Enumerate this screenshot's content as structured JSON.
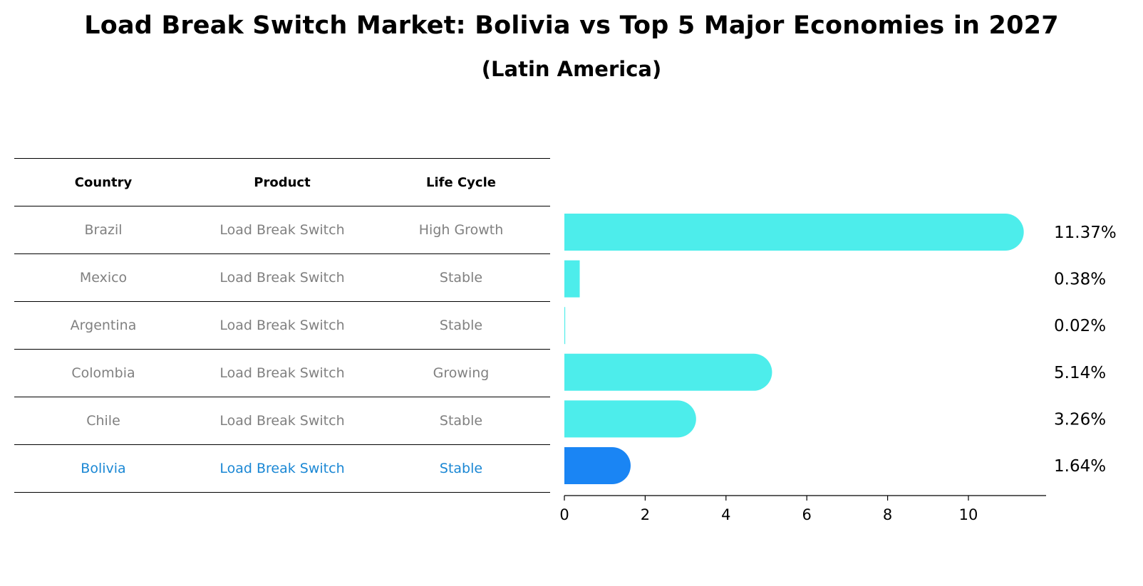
{
  "header": {
    "title": "Load Break Switch Market: Bolivia vs Top 5 Major Economies in 2027",
    "subtitle": "(Latin America)"
  },
  "table": {
    "columns": [
      "Country",
      "Product",
      "Life Cycle"
    ],
    "rows": [
      {
        "country": "Brazil",
        "product": "Load Break Switch",
        "life_cycle": "High Growth"
      },
      {
        "country": "Mexico",
        "product": "Load Break Switch",
        "life_cycle": "Stable"
      },
      {
        "country": "Argentina",
        "product": "Load Break Switch",
        "life_cycle": "Stable"
      },
      {
        "country": "Colombia",
        "product": "Load Break Switch",
        "life_cycle": "Growing"
      },
      {
        "country": "Chile",
        "product": "Load Break Switch",
        "life_cycle": "Stable"
      },
      {
        "country": "Bolivia",
        "product": "Load Break Switch",
        "life_cycle": "Stable"
      }
    ],
    "highlight_color": "#1A87D4",
    "text_color": "#808080"
  },
  "chart_data": {
    "type": "bar",
    "orientation": "horizontal",
    "categories": [
      "Brazil",
      "Mexico",
      "Argentina",
      "Colombia",
      "Chile",
      "Bolivia"
    ],
    "values": [
      11.37,
      0.38,
      0.02,
      5.14,
      3.26,
      1.64
    ],
    "value_labels": [
      "11.37%",
      "0.38%",
      "0.02%",
      "5.14%",
      "3.26%",
      "1.64%"
    ],
    "xlim": [
      0,
      12
    ],
    "xticks": [
      "0",
      "2",
      "4",
      "6",
      "8",
      "10"
    ],
    "xlabel": "",
    "ylabel": "",
    "grid": false,
    "colors": {
      "default": "#4DEDEB",
      "highlight": "#1A85F4"
    },
    "highlight_category": "Bolivia"
  }
}
